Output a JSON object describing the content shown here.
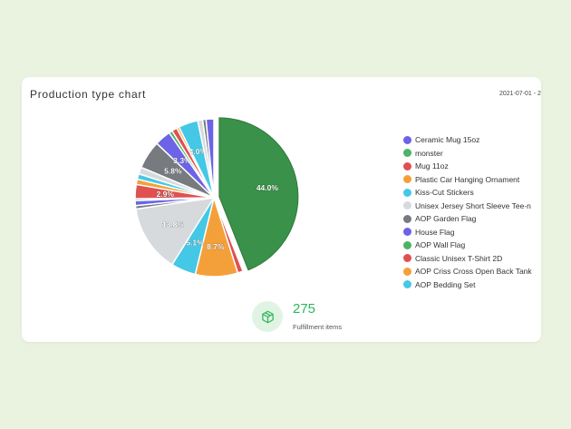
{
  "card": {
    "title": "Production type chart",
    "date": "2021-07-01 - 2"
  },
  "summary": {
    "count": "275",
    "label": "Fulfillment items",
    "icon": "box-icon"
  },
  "chart_data": {
    "type": "pie",
    "title": "Production type chart",
    "legend_placement": "right",
    "legend": [
      {
        "label": "Ceramic Mug 15oz",
        "color": "#6c63e6"
      },
      {
        "label": "monster",
        "color": "#4db366"
      },
      {
        "label": "Mug 11oz",
        "color": "#e05050"
      },
      {
        "label": "Plastic Car Hanging Ornament",
        "color": "#f4a03a"
      },
      {
        "label": "Kiss-Cut Stickers",
        "color": "#44c8e6"
      },
      {
        "label": "Unisex Jersey Short Sleeve Tee-n",
        "color": "#d6dadd"
      },
      {
        "label": "AOP Garden Flag",
        "color": "#777b80"
      },
      {
        "label": "House Flag",
        "color": "#6c63e6"
      },
      {
        "label": "AOP Wall Flag",
        "color": "#4db366"
      },
      {
        "label": "Classic Unisex T-Shirt 2D",
        "color": "#e05050"
      },
      {
        "label": "AOP Criss Cross Open Back Tank",
        "color": "#f4a03a"
      },
      {
        "label": "AOP Bedding Set",
        "color": "#44c8e6"
      }
    ],
    "slices": [
      {
        "value": 44.0,
        "color": "#3a9149",
        "label": "44.0%",
        "exploded": true
      },
      {
        "value": 1.1,
        "color": "#e05050",
        "label": ""
      },
      {
        "value": 8.7,
        "color": "#f4a03a",
        "label": "8.7%"
      },
      {
        "value": 5.1,
        "color": "#44c8e6",
        "label": "5.1%"
      },
      {
        "value": 13.8,
        "color": "#d6dadd",
        "label": "13.8%"
      },
      {
        "value": 0.7,
        "color": "#777b80",
        "label": ""
      },
      {
        "value": 1.0,
        "color": "#6c63e6",
        "label": ""
      },
      {
        "value": 0.4,
        "color": "#4db366",
        "label": ""
      },
      {
        "value": 2.9,
        "color": "#e05050",
        "label": "2.9%"
      },
      {
        "value": 1.1,
        "color": "#f4a03a",
        "label": ""
      },
      {
        "value": 1.1,
        "color": "#44c8e6",
        "label": ""
      },
      {
        "value": 1.4,
        "color": "#d6dadd",
        "label": ""
      },
      {
        "value": 5.8,
        "color": "#777b80",
        "label": "5.8%"
      },
      {
        "value": 3.3,
        "color": "#6c63e6",
        "label": "3.3%"
      },
      {
        "value": 0.7,
        "color": "#4db366",
        "label": ""
      },
      {
        "value": 1.1,
        "color": "#e05050",
        "label": ""
      },
      {
        "value": 0.5,
        "color": "#f4a03a",
        "label": ""
      },
      {
        "value": 4.0,
        "color": "#44c8e6",
        "label": "4.0%"
      },
      {
        "value": 1.0,
        "color": "#d6dadd",
        "label": ""
      },
      {
        "value": 0.7,
        "color": "#777b80",
        "label": ""
      },
      {
        "value": 1.6,
        "color": "#6c63e6",
        "label": ""
      }
    ]
  }
}
